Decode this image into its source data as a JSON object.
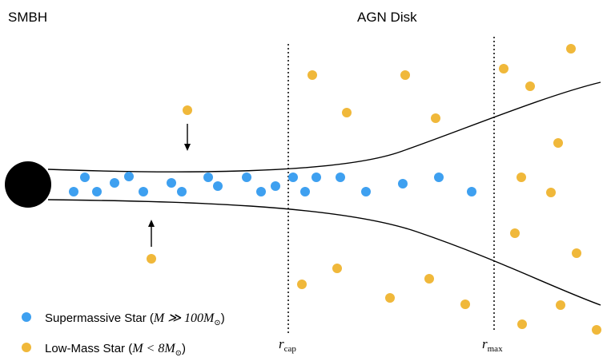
{
  "labels": {
    "smbh": "SMBH",
    "agn_disk": "AGN Disk"
  },
  "radii": {
    "r_cap": {
      "symbol": "r",
      "subscript": "cap"
    },
    "r_max": {
      "symbol": "r",
      "subscript": "max"
    }
  },
  "legend": {
    "supermassive": {
      "name": "Supermassive Star (",
      "math": "M ≫ 100M",
      "sub": "⊙",
      "close": ")"
    },
    "low_mass": {
      "name": "Low-Mass Star (",
      "math": "M < 8M",
      "sub": "⊙",
      "close": ")"
    }
  },
  "colors": {
    "supermassive": "#3ea0f0",
    "low_mass": "#f0b83a",
    "smbh": "#000000",
    "lines": "#000000"
  }
}
